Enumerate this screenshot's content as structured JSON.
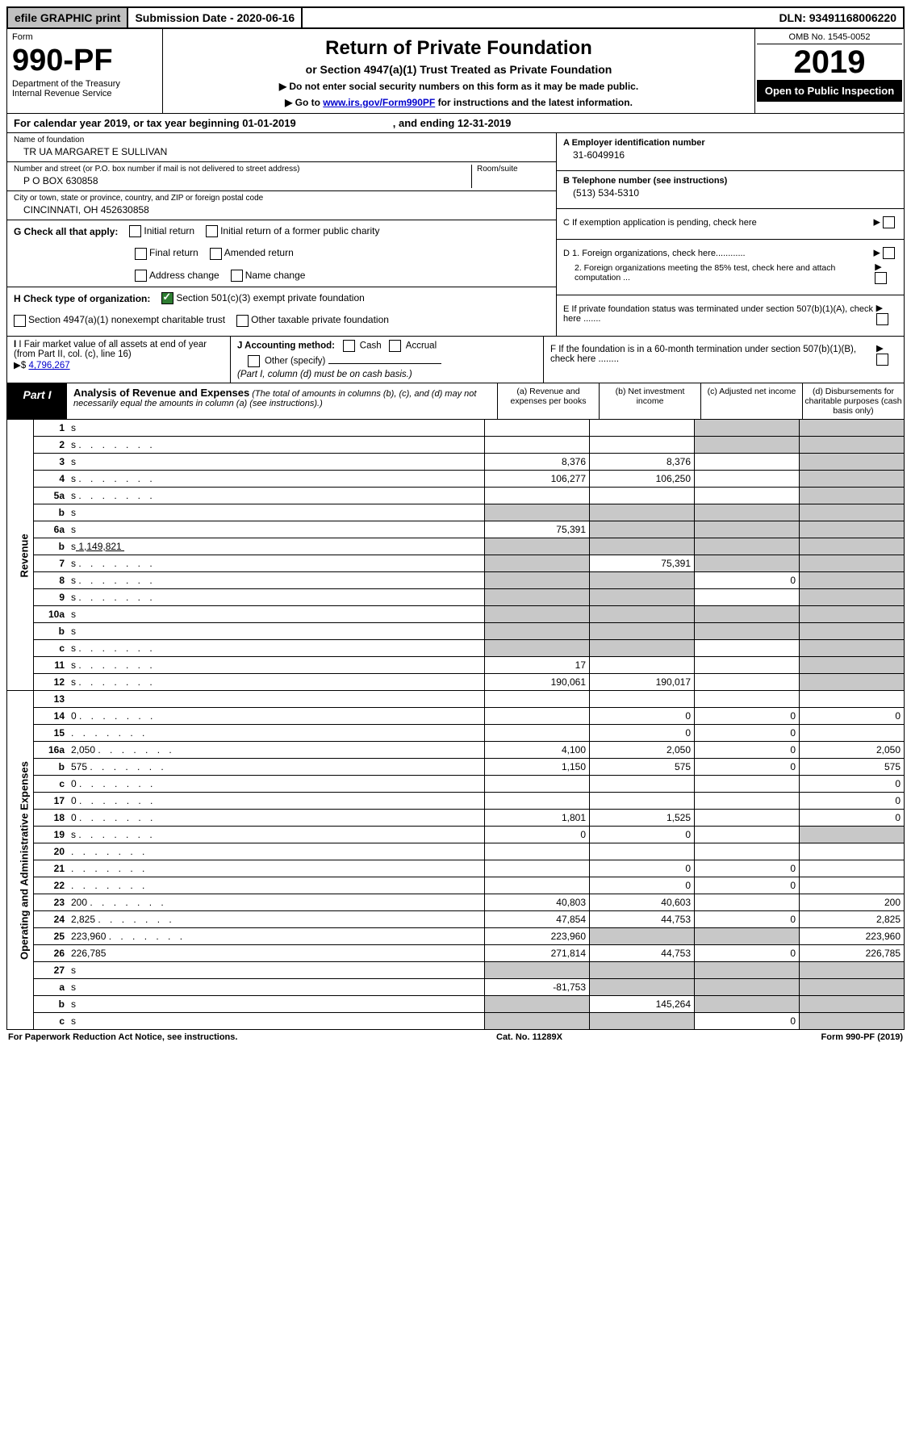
{
  "topbar": {
    "efile": "efile GRAPHIC print",
    "submission_label": "Submission Date - 2020-06-16",
    "dln": "DLN: 93491168006220"
  },
  "header": {
    "form_word": "Form",
    "form_number": "990-PF",
    "dept1": "Department of the Treasury",
    "dept2": "Internal Revenue Service",
    "title": "Return of Private Foundation",
    "subtitle": "or Section 4947(a)(1) Trust Treated as Private Foundation",
    "note1": "▶ Do not enter social security numbers on this form as it may be made public.",
    "note2_pre": "▶ Go to ",
    "note2_link": "www.irs.gov/Form990PF",
    "note2_post": " for instructions and the latest information.",
    "omb": "OMB No. 1545-0052",
    "year": "2019",
    "open_public": "Open to Public Inspection"
  },
  "calendar": {
    "text1": "For calendar year 2019, or tax year beginning 01-01-2019",
    "text2": ", and ending 12-31-2019"
  },
  "entity": {
    "name_label": "Name of foundation",
    "name": "TR UA MARGARET E SULLIVAN",
    "addr_label": "Number and street (or P.O. box number if mail is not delivered to street address)",
    "addr": "P O BOX 630858",
    "room_label": "Room/suite",
    "city_label": "City or town, state or province, country, and ZIP or foreign postal code",
    "city": "CINCINNATI, OH  452630858",
    "ein_label": "A Employer identification number",
    "ein": "31-6049916",
    "tel_label": "B Telephone number (see instructions)",
    "tel": "(513) 534-5310",
    "c_label": "C  If exemption application is pending, check here",
    "d1": "D 1. Foreign organizations, check here............",
    "d2": "2. Foreign organizations meeting the 85% test, check here and attach computation ...",
    "e": "E  If private foundation status was terminated under section 507(b)(1)(A), check here .......",
    "f": "F  If the foundation is in a 60-month termination under section 507(b)(1)(B), check here ........"
  },
  "g": {
    "label": "G Check all that apply:",
    "opts": [
      "Initial return",
      "Initial return of a former public charity",
      "Final return",
      "Amended return",
      "Address change",
      "Name change"
    ]
  },
  "h": {
    "label": "H Check type of organization:",
    "opt1": "Section 501(c)(3) exempt private foundation",
    "opt2": "Section 4947(a)(1) nonexempt charitable trust",
    "opt3": "Other taxable private foundation"
  },
  "i": {
    "label": "I Fair market value of all assets at end of year (from Part II, col. (c), line 16)",
    "arrow": "▶$",
    "value": "4,796,267"
  },
  "j": {
    "label": "J Accounting method:",
    "cash": "Cash",
    "accrual": "Accrual",
    "other": "Other (specify)",
    "note": "(Part I, column (d) must be on cash basis.)"
  },
  "part1": {
    "label": "Part I",
    "title": "Analysis of Revenue and Expenses",
    "title_note": "(The total of amounts in columns (b), (c), and (d) may not necessarily equal the amounts in column (a) (see instructions).)",
    "col_a": "(a)   Revenue and expenses per books",
    "col_b": "(b)  Net investment income",
    "col_c": "(c)  Adjusted net income",
    "col_d": "(d)  Disbursements for charitable purposes (cash basis only)"
  },
  "vlabels": {
    "revenue": "Revenue",
    "expenses": "Operating and Administrative Expenses"
  },
  "rows": [
    {
      "n": "1",
      "d": "s",
      "a": "",
      "b": "",
      "c": "s"
    },
    {
      "n": "2",
      "d": "s",
      "dots": true,
      "a": "",
      "b": "",
      "c": "s"
    },
    {
      "n": "3",
      "d": "s",
      "a": "8,376",
      "b": "8,376",
      "c": ""
    },
    {
      "n": "4",
      "d": "s",
      "dots": true,
      "a": "106,277",
      "b": "106,250",
      "c": ""
    },
    {
      "n": "5a",
      "d": "s",
      "dots": true,
      "a": "",
      "b": "",
      "c": ""
    },
    {
      "n": "b",
      "d": "s",
      "a": "s",
      "b": "s",
      "c": "s"
    },
    {
      "n": "6a",
      "d": "s",
      "a": "75,391",
      "b": "s",
      "c": "s"
    },
    {
      "n": "b",
      "d": "s",
      "inline": "1,149,821",
      "a": "s",
      "b": "s",
      "c": "s"
    },
    {
      "n": "7",
      "d": "s",
      "dots": true,
      "a": "s",
      "b": "75,391",
      "c": "s"
    },
    {
      "n": "8",
      "d": "s",
      "dots": true,
      "a": "s",
      "b": "s",
      "c": "0"
    },
    {
      "n": "9",
      "d": "s",
      "dots": true,
      "a": "s",
      "b": "s",
      "c": ""
    },
    {
      "n": "10a",
      "d": "s",
      "a": "s",
      "b": "s",
      "c": "s"
    },
    {
      "n": "b",
      "d": "s",
      "a": "s",
      "b": "s",
      "c": "s"
    },
    {
      "n": "c",
      "d": "s",
      "dots": true,
      "a": "s",
      "b": "s",
      "c": ""
    },
    {
      "n": "11",
      "d": "s",
      "dots": true,
      "a": "17",
      "b": "",
      "c": ""
    },
    {
      "n": "12",
      "d": "s",
      "dots": true,
      "a": "190,061",
      "b": "190,017",
      "c": ""
    },
    {
      "n": "13",
      "d": "",
      "a": "",
      "b": "",
      "c": ""
    },
    {
      "n": "14",
      "d": "0",
      "dots": true,
      "a": "",
      "b": "0",
      "c": "0"
    },
    {
      "n": "15",
      "d": "",
      "dots": true,
      "a": "",
      "b": "0",
      "c": "0"
    },
    {
      "n": "16a",
      "d": "2,050",
      "dots": true,
      "a": "4,100",
      "b": "2,050",
      "c": "0"
    },
    {
      "n": "b",
      "d": "575",
      "dots": true,
      "a": "1,150",
      "b": "575",
      "c": "0"
    },
    {
      "n": "c",
      "d": "0",
      "dots": true,
      "a": "",
      "b": "",
      "c": ""
    },
    {
      "n": "17",
      "d": "0",
      "dots": true,
      "a": "",
      "b": "",
      "c": ""
    },
    {
      "n": "18",
      "d": "0",
      "dots": true,
      "a": "1,801",
      "b": "1,525",
      "c": ""
    },
    {
      "n": "19",
      "d": "s",
      "dots": true,
      "a": "0",
      "b": "0",
      "c": ""
    },
    {
      "n": "20",
      "d": "",
      "dots": true,
      "a": "",
      "b": "",
      "c": ""
    },
    {
      "n": "21",
      "d": "",
      "dots": true,
      "a": "",
      "b": "0",
      "c": "0"
    },
    {
      "n": "22",
      "d": "",
      "dots": true,
      "a": "",
      "b": "0",
      "c": "0"
    },
    {
      "n": "23",
      "d": "200",
      "dots": true,
      "a": "40,803",
      "b": "40,603",
      "c": ""
    },
    {
      "n": "24",
      "d": "2,825",
      "dots": true,
      "a": "47,854",
      "b": "44,753",
      "c": "0"
    },
    {
      "n": "25",
      "d": "223,960",
      "dots": true,
      "a": "223,960",
      "b": "s",
      "c": "s"
    },
    {
      "n": "26",
      "d": "226,785",
      "a": "271,814",
      "b": "44,753",
      "c": "0"
    },
    {
      "n": "27",
      "d": "s",
      "a": "s",
      "b": "s",
      "c": "s"
    },
    {
      "n": "a",
      "d": "s",
      "a": "-81,753",
      "b": "s",
      "c": "s"
    },
    {
      "n": "b",
      "d": "s",
      "a": "s",
      "b": "145,264",
      "c": "s"
    },
    {
      "n": "c",
      "d": "s",
      "a": "s",
      "b": "s",
      "c": "0"
    }
  ],
  "footer": {
    "left": "For Paperwork Reduction Act Notice, see instructions.",
    "mid": "Cat. No. 11289X",
    "right": "Form 990-PF (2019)"
  }
}
